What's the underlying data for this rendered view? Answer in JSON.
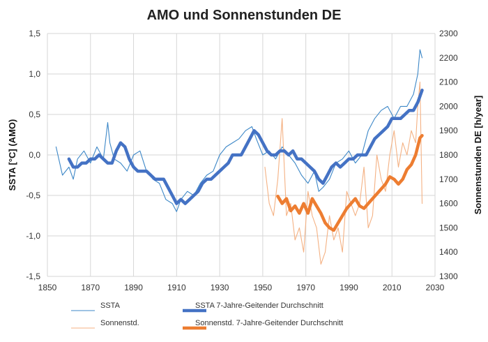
{
  "chart_data": {
    "type": "line",
    "title": "AMO und Sonnenstunden DE",
    "xlabel": "",
    "ylabel_left": "SSTA [°C]   (AMO)",
    "ylabel_right": "Sonnenstunden DE  [h/year]",
    "xlim": [
      1850,
      2030
    ],
    "ylim_left": [
      -1.5,
      1.5
    ],
    "ylim_right": [
      1300,
      2300
    ],
    "x_ticks": [
      1850,
      1870,
      1890,
      1910,
      1930,
      1950,
      1970,
      1990,
      2010,
      2030
    ],
    "y_left_ticks": [
      "1,5",
      "1,0",
      "0,5",
      "0,0",
      "-0,5",
      "-1,0",
      "-1,5"
    ],
    "y_left_tick_values": [
      1.5,
      1.0,
      0.5,
      0.0,
      -0.5,
      -1.0,
      -1.5
    ],
    "y_right_ticks": [
      2300,
      2200,
      2100,
      2000,
      1900,
      1800,
      1700,
      1600,
      1500,
      1400,
      1300
    ],
    "grid": true,
    "colors": {
      "ssta_raw": "#3c87c7",
      "ssta_smooth": "#4472c4",
      "sun_raw": "#f4b183",
      "sun_smooth": "#ed7d31"
    },
    "series": [
      {
        "name": "SSTA",
        "axis": "left",
        "style": "raw",
        "x": [
          1854,
          1857,
          1860,
          1862,
          1864,
          1867,
          1870,
          1873,
          1876,
          1878,
          1879,
          1881,
          1884,
          1887,
          1890,
          1893,
          1896,
          1899,
          1902,
          1905,
          1908,
          1910,
          1912,
          1915,
          1918,
          1921,
          1924,
          1927,
          1930,
          1933,
          1936,
          1939,
          1942,
          1945,
          1947,
          1950,
          1953,
          1956,
          1959,
          1962,
          1965,
          1968,
          1971,
          1974,
          1976,
          1978,
          1981,
          1984,
          1987,
          1990,
          1993,
          1996,
          1999,
          2002,
          2005,
          2008,
          2011,
          2014,
          2017,
          2020,
          2022,
          2023,
          2024
        ],
        "values": [
          0.1,
          -0.25,
          -0.15,
          -0.3,
          -0.05,
          0.05,
          -0.1,
          0.1,
          -0.05,
          0.4,
          0.15,
          -0.05,
          -0.1,
          -0.2,
          0.0,
          0.05,
          -0.2,
          -0.3,
          -0.35,
          -0.55,
          -0.6,
          -0.7,
          -0.55,
          -0.45,
          -0.5,
          -0.35,
          -0.25,
          -0.2,
          0.0,
          0.1,
          0.15,
          0.2,
          0.3,
          0.35,
          0.2,
          0.0,
          0.05,
          -0.05,
          0.1,
          0.0,
          -0.1,
          -0.25,
          -0.35,
          -0.2,
          -0.45,
          -0.4,
          -0.3,
          -0.1,
          -0.05,
          0.05,
          -0.1,
          0.0,
          0.3,
          0.45,
          0.55,
          0.6,
          0.45,
          0.6,
          0.6,
          0.75,
          1.0,
          1.3,
          1.2
        ]
      },
      {
        "name": "SSTA 7-Jahre-Geitender Durchschnitt",
        "axis": "left",
        "style": "smooth",
        "x": [
          1860,
          1862,
          1864,
          1866,
          1868,
          1870,
          1872,
          1874,
          1876,
          1878,
          1880,
          1882,
          1884,
          1886,
          1888,
          1890,
          1892,
          1894,
          1896,
          1898,
          1900,
          1902,
          1904,
          1906,
          1908,
          1910,
          1912,
          1914,
          1916,
          1918,
          1920,
          1922,
          1924,
          1926,
          1928,
          1930,
          1932,
          1934,
          1936,
          1938,
          1940,
          1942,
          1944,
          1946,
          1948,
          1950,
          1952,
          1954,
          1956,
          1958,
          1960,
          1962,
          1964,
          1966,
          1968,
          1970,
          1972,
          1974,
          1976,
          1978,
          1980,
          1982,
          1984,
          1986,
          1988,
          1990,
          1992,
          1994,
          1996,
          1998,
          2000,
          2002,
          2004,
          2006,
          2008,
          2010,
          2012,
          2014,
          2016,
          2018,
          2020,
          2022,
          2024
        ],
        "values": [
          -0.05,
          -0.15,
          -0.15,
          -0.1,
          -0.1,
          -0.05,
          -0.05,
          0.0,
          -0.05,
          -0.1,
          -0.1,
          0.05,
          0.15,
          0.1,
          -0.05,
          -0.15,
          -0.2,
          -0.2,
          -0.2,
          -0.25,
          -0.3,
          -0.3,
          -0.3,
          -0.4,
          -0.5,
          -0.6,
          -0.55,
          -0.6,
          -0.55,
          -0.5,
          -0.45,
          -0.35,
          -0.3,
          -0.3,
          -0.25,
          -0.2,
          -0.15,
          -0.1,
          0.0,
          0.0,
          0.0,
          0.1,
          0.2,
          0.3,
          0.25,
          0.15,
          0.05,
          0.0,
          0.0,
          0.05,
          0.05,
          0.0,
          0.05,
          -0.05,
          -0.05,
          -0.1,
          -0.15,
          -0.2,
          -0.3,
          -0.35,
          -0.25,
          -0.15,
          -0.1,
          -0.15,
          -0.1,
          -0.05,
          -0.05,
          0.0,
          0.0,
          0.0,
          0.1,
          0.2,
          0.25,
          0.3,
          0.35,
          0.45,
          0.45,
          0.45,
          0.5,
          0.55,
          0.55,
          0.65,
          0.8
        ]
      },
      {
        "name": "Sonnenstd.",
        "axis": "right",
        "style": "raw",
        "x": [
          1951,
          1953,
          1955,
          1957,
          1959,
          1961,
          1963,
          1965,
          1967,
          1969,
          1971,
          1973,
          1975,
          1977,
          1979,
          1981,
          1983,
          1985,
          1987,
          1989,
          1991,
          1993,
          1995,
          1997,
          1999,
          2001,
          2003,
          2005,
          2007,
          2009,
          2011,
          2013,
          2015,
          2017,
          2019,
          2021,
          2022,
          2023,
          2024
        ],
        "values": [
          1750,
          1600,
          1550,
          1700,
          1950,
          1550,
          1600,
          1450,
          1500,
          1400,
          1650,
          1550,
          1500,
          1350,
          1400,
          1550,
          1450,
          1500,
          1400,
          1650,
          1600,
          1550,
          1600,
          1750,
          1500,
          1550,
          1800,
          1700,
          1650,
          1800,
          1900,
          1750,
          1850,
          1800,
          1900,
          1850,
          2000,
          2100,
          1600
        ]
      },
      {
        "name": "Sonnenstd.  7-Jahre-Geitender Durchschnitt",
        "axis": "right",
        "style": "smooth",
        "x": [
          1957,
          1959,
          1961,
          1963,
          1965,
          1967,
          1969,
          1971,
          1973,
          1975,
          1977,
          1979,
          1981,
          1983,
          1985,
          1987,
          1989,
          1991,
          1993,
          1995,
          1997,
          1999,
          2001,
          2003,
          2005,
          2007,
          2009,
          2011,
          2013,
          2015,
          2017,
          2019,
          2021,
          2023,
          2024
        ],
        "values": [
          1630,
          1600,
          1620,
          1570,
          1590,
          1560,
          1600,
          1560,
          1620,
          1590,
          1560,
          1520,
          1500,
          1490,
          1520,
          1550,
          1580,
          1600,
          1620,
          1590,
          1580,
          1600,
          1620,
          1640,
          1660,
          1680,
          1710,
          1700,
          1680,
          1700,
          1740,
          1760,
          1800,
          1870,
          1880
        ]
      }
    ],
    "legend": [
      {
        "label": "SSTA",
        "series": 0
      },
      {
        "label": "SSTA 7-Jahre-Geitender Durchschnitt",
        "series": 1
      },
      {
        "label": "Sonnenstd.",
        "series": 2
      },
      {
        "label": "Sonnenstd.  7-Jahre-Geitender Durchschnitt",
        "series": 3
      }
    ],
    "legend_position": "bottom"
  }
}
